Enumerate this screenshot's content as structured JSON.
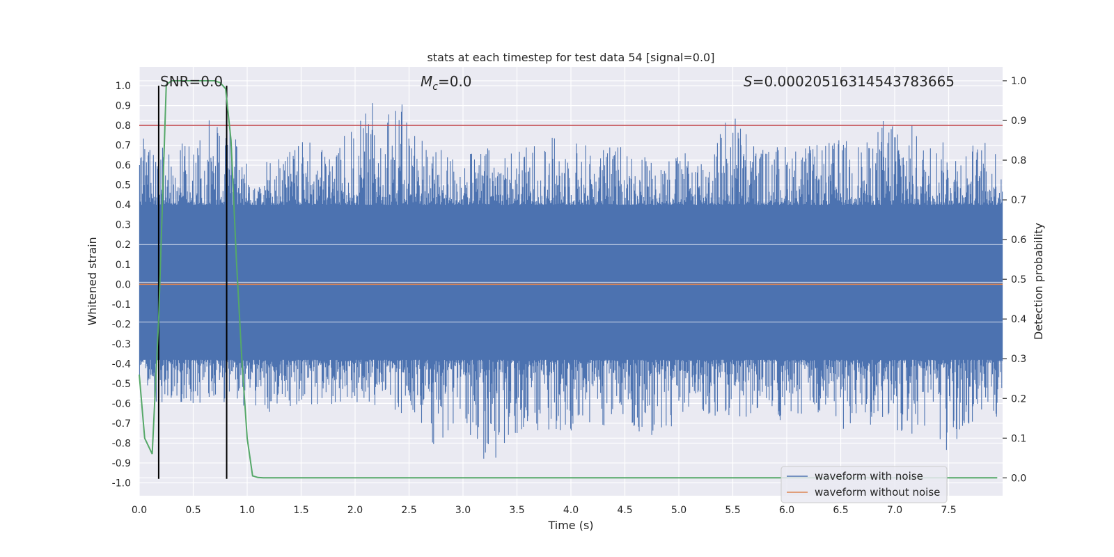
{
  "chart_data": {
    "type": "line",
    "title": "stats at each timestep for test data 54 [signal=0.0]",
    "xlabel": "Time (s)",
    "ylabel_left": "Whitened strain",
    "ylabel_right": "Detection probability",
    "xlim": [
      0.0,
      8.0
    ],
    "ylim_left": [
      -1.065,
      1.095
    ],
    "ylim_right": [
      -0.045,
      1.035
    ],
    "x_ticks": [
      0.0,
      0.5,
      1.0,
      1.5,
      2.0,
      2.5,
      3.0,
      3.5,
      4.0,
      4.5,
      5.0,
      5.5,
      6.0,
      6.5,
      7.0,
      7.5
    ],
    "x_tick_labels": [
      "0.0",
      "0.5",
      "1.0",
      "1.5",
      "2.0",
      "2.5",
      "3.0",
      "3.5",
      "4.0",
      "4.5",
      "5.0",
      "5.5",
      "6.0",
      "6.5",
      "7.0",
      "7.5"
    ],
    "y_ticks_left": [
      -1.0,
      -0.9,
      -0.8,
      -0.7,
      -0.6,
      -0.5,
      -0.4,
      -0.3,
      -0.2,
      -0.1,
      0.0,
      0.1,
      0.2,
      0.3,
      0.4,
      0.5,
      0.6,
      0.7,
      0.8,
      0.9,
      1.0
    ],
    "y_tick_labels_left": [
      "-1.0",
      "-0.9",
      "-0.8",
      "-0.7",
      "-0.6",
      "-0.5",
      "-0.4",
      "-0.3",
      "-0.2",
      "-0.1",
      "0.0",
      "0.1",
      "0.2",
      "0.3",
      "0.4",
      "0.5",
      "0.6",
      "0.7",
      "0.8",
      "0.9",
      "1.0"
    ],
    "y_ticks_right": [
      0.0,
      0.1,
      0.2,
      0.3,
      0.4,
      0.5,
      0.6,
      0.7,
      0.8,
      0.9,
      1.0
    ],
    "y_tick_labels_right": [
      "0.0",
      "0.1",
      "0.2",
      "0.3",
      "0.4",
      "0.5",
      "0.6",
      "0.7",
      "0.8",
      "0.9",
      "1.0"
    ],
    "annotations": {
      "snr": "SNR=0.0",
      "mc_symbol": "M",
      "mc_sub": "c",
      "mc_value": "=0.0",
      "s_symbol": "S",
      "s_value": "=0.00020516314543783665"
    },
    "series": [
      {
        "name": "waveform with noise",
        "axis": "left",
        "color": "#4c72b0",
        "envelope_x": [
          0.0,
          0.25,
          0.5,
          0.75,
          1.0,
          1.25,
          1.5,
          1.75,
          2.0,
          2.25,
          2.5,
          2.75,
          3.0,
          3.25,
          3.5,
          3.75,
          4.0,
          4.25,
          4.5,
          4.75,
          5.0,
          5.25,
          5.5,
          5.75,
          6.0,
          6.25,
          6.5,
          6.75,
          7.0,
          7.25,
          7.5,
          7.75,
          8.0
        ],
        "envelope_upper": [
          0.78,
          0.71,
          0.71,
          0.93,
          0.62,
          0.65,
          0.72,
          0.7,
          0.79,
          1.0,
          0.88,
          0.68,
          0.66,
          0.7,
          0.68,
          0.74,
          0.76,
          0.69,
          0.72,
          0.65,
          0.66,
          0.68,
          0.91,
          0.69,
          0.72,
          0.7,
          0.74,
          0.72,
          0.95,
          0.73,
          0.72,
          0.72,
          0.72
        ],
        "envelope_lower": [
          -0.55,
          -0.62,
          -0.6,
          -0.6,
          -0.62,
          -0.65,
          -0.62,
          -0.6,
          -0.62,
          -0.63,
          -0.66,
          -0.85,
          -0.68,
          -0.97,
          -0.75,
          -0.74,
          -0.74,
          -0.72,
          -0.7,
          -0.78,
          -0.7,
          -0.66,
          -0.7,
          -0.66,
          -0.7,
          -0.68,
          -0.74,
          -0.72,
          -0.74,
          -0.78,
          -0.9,
          -0.7,
          -0.68
        ],
        "core_upper": 0.4,
        "core_lower": -0.38
      },
      {
        "name": "waveform without noise",
        "axis": "left",
        "color": "#dd8452",
        "x": [
          0.0,
          8.0
        ],
        "y": [
          0.0,
          0.0
        ]
      },
      {
        "name": "detection probability",
        "axis": "right",
        "color": "#55a868",
        "x": [
          0.0,
          0.05,
          0.12,
          0.18,
          0.25,
          0.3,
          0.4,
          0.5,
          0.6,
          0.7,
          0.75,
          0.8,
          0.85,
          0.9,
          0.95,
          1.0,
          1.05,
          1.1,
          1.15,
          1.5,
          2.0,
          3.0,
          4.0,
          5.0,
          6.0,
          7.0,
          7.95
        ],
        "y": [
          0.26,
          0.1,
          0.06,
          0.4,
          0.99,
          1.0,
          1.0,
          1.0,
          1.0,
          1.0,
          0.995,
          0.98,
          0.85,
          0.55,
          0.3,
          0.1,
          0.005,
          0.001,
          0.0,
          0.0,
          0.0,
          0.0,
          0.0,
          0.0,
          0.0,
          0.0,
          0.0
        ]
      }
    ],
    "threshold_line": {
      "axis": "left",
      "y": 0.8,
      "color": "#c44e52"
    },
    "vertical_markers": [
      0.18,
      0.81
    ],
    "marker_color": "#000000",
    "legend": {
      "position": "bottom-right",
      "entries": [
        {
          "label": "waveform with noise",
          "color": "#4c72b0"
        },
        {
          "label": "waveform without noise",
          "color": "#dd8452"
        }
      ]
    },
    "background_color": "#eaeaf2",
    "grid": true
  }
}
